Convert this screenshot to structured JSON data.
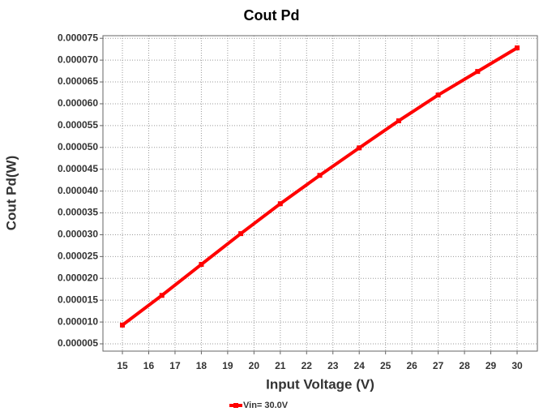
{
  "chart_data": {
    "type": "line",
    "title": "Cout Pd",
    "xlabel": "Input Voltage (V)",
    "ylabel": "Cout Pd(W)",
    "x": [
      15,
      16.5,
      18,
      19.5,
      21,
      22.5,
      24,
      25.5,
      27,
      28.5,
      30
    ],
    "series": [
      {
        "name": "Vin= 30.0V",
        "color": "#ff0000",
        "values": [
          9.3e-06,
          1.61e-05,
          2.32e-05,
          3.025e-05,
          3.71e-05,
          4.36e-05,
          4.99e-05,
          5.61e-05,
          6.2e-05,
          6.74e-05,
          7.28e-05
        ]
      }
    ],
    "xlim": [
      14.26,
      30.77
    ],
    "xticks": [
      15,
      16,
      17,
      18,
      19,
      20,
      21,
      22,
      23,
      24,
      25,
      26,
      27,
      28,
      29,
      30
    ],
    "ylim": [
      3.33e-06,
      7.56e-05
    ],
    "yticks": [
      {
        "value": 5e-06,
        "label": "0.000005"
      },
      {
        "value": 1e-05,
        "label": "0.000010"
      },
      {
        "value": 1.5e-05,
        "label": "0.000015"
      },
      {
        "value": 2e-05,
        "label": "0.000020"
      },
      {
        "value": 2.5e-05,
        "label": "0.000025"
      },
      {
        "value": 3e-05,
        "label": "0.000030"
      },
      {
        "value": 3.5e-05,
        "label": "0.000035"
      },
      {
        "value": 4e-05,
        "label": "0.000040"
      },
      {
        "value": 4.5e-05,
        "label": "0.000045"
      },
      {
        "value": 5e-05,
        "label": "0.000050"
      },
      {
        "value": 5.5e-05,
        "label": "0.000055"
      },
      {
        "value": 6e-05,
        "label": "0.000060"
      },
      {
        "value": 6.5e-05,
        "label": "0.000065"
      },
      {
        "value": 7e-05,
        "label": "0.000070"
      },
      {
        "value": 7.5e-05,
        "label": "0.000075"
      }
    ],
    "grid": true,
    "legend": "bottom"
  }
}
